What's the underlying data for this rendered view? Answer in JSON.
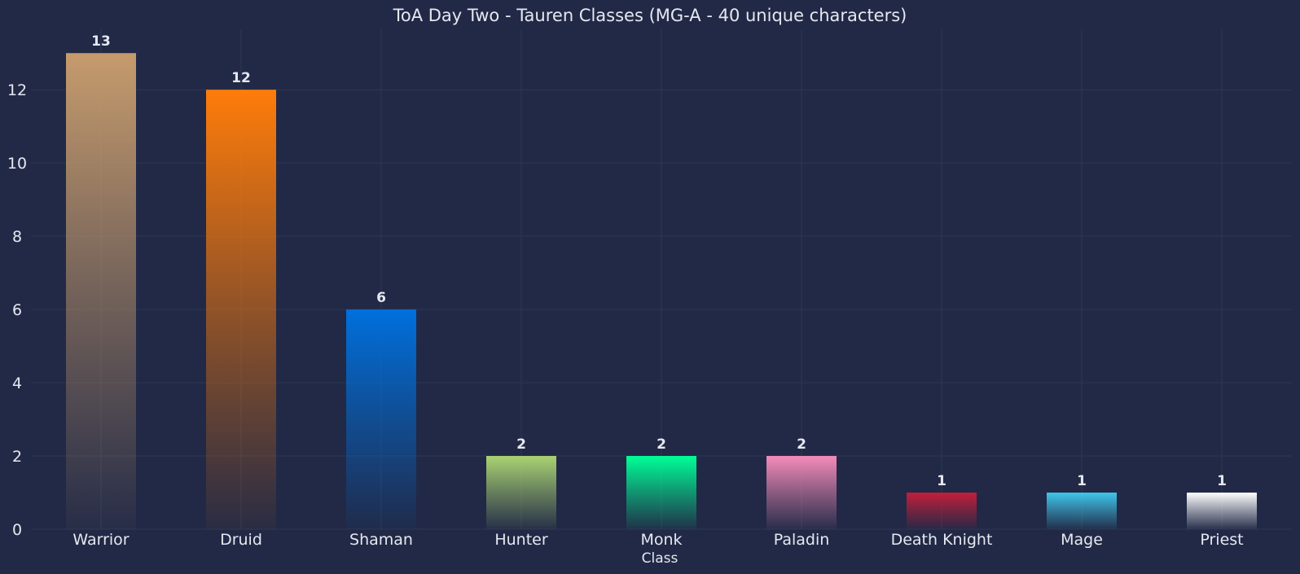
{
  "chart_data": {
    "type": "bar",
    "title": "ToA Day Two - Tauren Classes (MG-A - 40 unique characters)",
    "xlabel": "Class",
    "ylabel": "",
    "categories": [
      "Warrior",
      "Druid",
      "Shaman",
      "Hunter",
      "Monk",
      "Paladin",
      "Death Knight",
      "Mage",
      "Priest"
    ],
    "values": [
      13,
      12,
      6,
      2,
      2,
      2,
      1,
      1,
      1
    ],
    "value_labels": [
      "13",
      "12",
      "6",
      "2",
      "2",
      "2",
      "1",
      "1",
      "1"
    ],
    "colors": [
      "#C69B6D",
      "#FF7C0A",
      "#0070DD",
      "#AAD372",
      "#00FF98",
      "#F48CBA",
      "#C41E3A",
      "#3FC7EB",
      "#FFFFFF"
    ],
    "ylim": [
      0,
      13.65
    ],
    "yticks": [
      0,
      2,
      4,
      6,
      8,
      10,
      12
    ],
    "ytick_labels": [
      "0",
      "2",
      "4",
      "6",
      "8",
      "10",
      "12"
    ],
    "grid": true,
    "background": "#212946",
    "text_color": "#e6e8f0",
    "grid_color": "#2d3753"
  }
}
